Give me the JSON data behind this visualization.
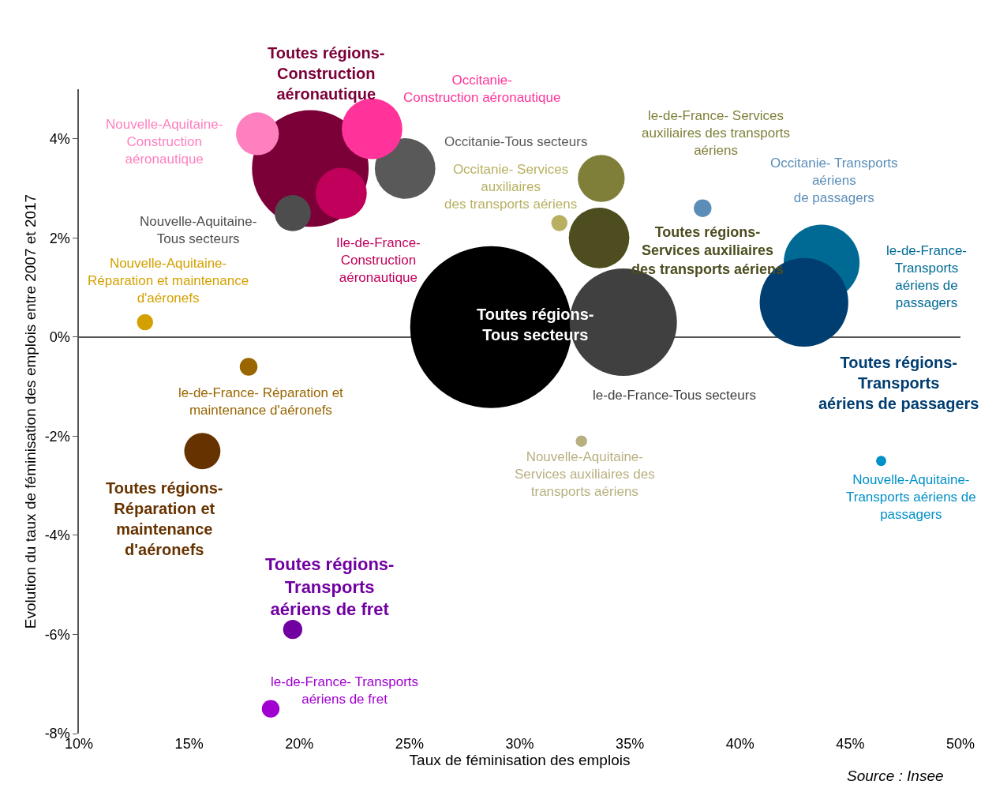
{
  "chart_data": {
    "type": "bubble",
    "xlabel": "Taux de féminisation des emplois",
    "ylabel": "Evolution du taux de féminisation des emplois entre 2007 et 2017",
    "xlim": [
      10,
      50
    ],
    "xticks": [
      {
        "value": 10,
        "label": "10%"
      },
      {
        "value": 15,
        "label": "15%"
      },
      {
        "value": 20,
        "label": "20%"
      },
      {
        "value": 25,
        "label": "25%"
      },
      {
        "value": 30,
        "label": "30%"
      },
      {
        "value": 35,
        "label": "35%"
      },
      {
        "value": 40,
        "label": "40%"
      },
      {
        "value": 45,
        "label": "45%"
      },
      {
        "value": 50,
        "label": "50%"
      }
    ],
    "ylim": [
      -8,
      5
    ],
    "yticks": [
      {
        "value": -8,
        "label": "-8%"
      },
      {
        "value": -6,
        "label": "-6%"
      },
      {
        "value": -4,
        "label": "-4%"
      },
      {
        "value": -2,
        "label": "-2%"
      },
      {
        "value": 0,
        "label": "0%"
      },
      {
        "value": 2,
        "label": "2%"
      },
      {
        "value": 4,
        "label": "4%"
      }
    ],
    "series": [
      {
        "name": "Toutes régions- Tous secteurs",
        "color": "#000000",
        "x": [
          28.7
        ],
        "values": [
          0.2
        ],
        "sizes": [
          1
        ]
      },
      {
        "name": "le-de-France-Tous secteurs",
        "color": "#404040",
        "x": [
          34.7
        ],
        "values": [
          0.3
        ],
        "sizes": [
          0.44
        ]
      },
      {
        "name": "Toutes régions- Construction aéronautique",
        "color": "#7b0037",
        "x": [
          20.5
        ],
        "values": [
          3.4
        ],
        "sizes": [
          0.52
        ]
      },
      {
        "name": "Occitanie-Tous secteurs",
        "color": "#595959",
        "x": [
          24.8
        ],
        "values": [
          3.4
        ],
        "sizes": [
          0.14
        ]
      },
      {
        "name": "Occitanie- Construction aéronautique",
        "color": "#ff3399",
        "x": [
          23.3
        ],
        "values": [
          4.2
        ],
        "sizes": [
          0.14
        ]
      },
      {
        "name": "Nouvelle-Aquitaine- Construction aéronautique",
        "color": "#ff80bf",
        "x": [
          18.1
        ],
        "values": [
          4.1
        ],
        "sizes": [
          0.07
        ]
      },
      {
        "name": "Ile-de-France- Construction aéronautique",
        "color": "#c0005a",
        "x": [
          21.9
        ],
        "values": [
          2.9
        ],
        "sizes": [
          0.1
        ]
      },
      {
        "name": "Nouvelle-Aquitaine- Tous secteurs",
        "color": "#4d4d4d",
        "x": [
          19.7
        ],
        "values": [
          2.5
        ],
        "sizes": [
          0.05
        ]
      },
      {
        "name": "Nouvelle-Aquitaine- Réparation et maintenance d'aéronefs",
        "color": "#d4a000",
        "x": [
          13.0
        ],
        "values": [
          0.3
        ],
        "sizes": [
          0.01
        ]
      },
      {
        "name": "le-de-France- Réparation et maintenance d'aéronefs",
        "color": "#996600",
        "x": [
          17.7
        ],
        "values": [
          -0.6
        ],
        "sizes": [
          0.012
        ]
      },
      {
        "name": "Toutes régions- Réparation et maintenance d'aéronefs",
        "color": "#663300",
        "x": [
          15.6
        ],
        "values": [
          -2.3
        ],
        "sizes": [
          0.05
        ]
      },
      {
        "name": "Toutes régions- Transports aériens de fret",
        "color": "#7000a0",
        "x": [
          19.7
        ],
        "values": [
          -5.9
        ],
        "sizes": [
          0.014
        ]
      },
      {
        "name": "le-de-France- Transports aériens de fret",
        "color": "#a000d0",
        "x": [
          18.7
        ],
        "values": [
          -7.5
        ],
        "sizes": [
          0.012
        ]
      },
      {
        "name": "le-de-France- Services auxiliaires des transports aériens",
        "color": "#7f7f3a",
        "x": [
          33.7
        ],
        "values": [
          3.2
        ],
        "sizes": [
          0.084
        ]
      },
      {
        "name": "Toutes régions- Services auxiliaires des transports aériens",
        "color": "#4d4d1f",
        "x": [
          33.6
        ],
        "values": [
          2.0
        ],
        "sizes": [
          0.14
        ]
      },
      {
        "name": "Occitanie- Services auxiliaires des transports aériens",
        "color": "#b8b060",
        "x": [
          31.8
        ],
        "values": [
          2.3
        ],
        "sizes": [
          0.01
        ]
      },
      {
        "name": "Nouvelle-Aquitaine- Services auxiliaires des transports aériens",
        "color": "#b8b080",
        "x": [
          32.8
        ],
        "values": [
          -2.1
        ],
        "sizes": [
          0.005
        ]
      },
      {
        "name": "Occitanie- Transports aériens de passagers",
        "color": "#5b8db8",
        "x": [
          38.3
        ],
        "values": [
          2.6
        ],
        "sizes": [
          0.012
        ]
      },
      {
        "name": "le-de-France- Transports aériens de passagers",
        "color": "#006a94",
        "x": [
          43.7
        ],
        "values": [
          1.5
        ],
        "sizes": [
          0.22
        ]
      },
      {
        "name": "Toutes régions- Transports aériens de passagers",
        "color": "#003d70",
        "x": [
          42.9
        ],
        "values": [
          0.7
        ],
        "sizes": [
          0.3
        ]
      },
      {
        "name": "Nouvelle-Aquitaine- Transports aériens de passagers",
        "color": "#0090c8",
        "x": [
          46.4
        ],
        "values": [
          -2.5
        ],
        "sizes": [
          0.004
        ]
      }
    ],
    "annotations": [
      "Source : Insee"
    ]
  }
}
